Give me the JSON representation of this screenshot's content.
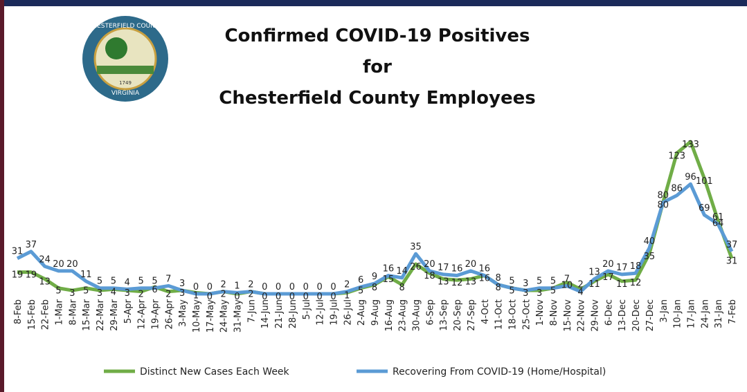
{
  "logo": {
    "top_text": "CHESTERFIELD COUNTY",
    "bottom_text": "VIRGINIA",
    "year": "1749"
  },
  "chart_data": {
    "type": "line",
    "title_lines": [
      "Confirmed COVID-19 Positives",
      "for",
      "Chesterfield County Employees"
    ],
    "categories": [
      "8-Feb",
      "15-Feb",
      "22-Feb",
      "1-Mar",
      "8-Mar",
      "15-Mar",
      "22-Mar",
      "29-Mar",
      "5-Apr",
      "12-Apr",
      "19-Apr",
      "26-Apr",
      "3-May",
      "10-May",
      "17-May",
      "24-May",
      "31-May",
      "7-Jun",
      "14-Jun",
      "21-Jun",
      "28-Jun",
      "5-Jul",
      "12-Jul",
      "19-Jul",
      "26-Jul",
      "2-Aug",
      "9-Aug",
      "16-Aug",
      "23-Aug",
      "30-Aug",
      "6-Sep",
      "13-Sep",
      "20-Sep",
      "27-Sep",
      "4-Oct",
      "11-Oct",
      "18-Oct",
      "25-Oct",
      "1-Nov",
      "8-Nov",
      "15-Nov",
      "22-Nov",
      "29-Nov",
      "6-Dec",
      "13-Dec",
      "20-Dec",
      "27-Dec",
      "3-Jan",
      "10-Jan",
      "17-Jan",
      "24-Jan",
      "31-Jan",
      "7-Feb"
    ],
    "series": [
      {
        "name": "Distinct New Cases Each Week",
        "color": "#70ad47",
        "values": [
          19,
          19,
          13,
          5,
          3,
          5,
          3,
          4,
          3,
          2,
          6,
          2,
          3,
          1,
          0,
          2,
          0,
          2,
          0,
          0,
          0,
          0,
          0,
          0,
          1,
          5,
          8,
          15,
          8,
          26,
          18,
          13,
          12,
          13,
          16,
          8,
          5,
          3,
          3,
          5,
          10,
          4,
          11,
          17,
          11,
          12,
          35,
          80,
          123,
          133,
          101,
          64,
          31
        ]
      },
      {
        "name": "Recovering From COVID-19 (Home/Hospital)",
        "color": "#5b9bd5",
        "values": [
          31,
          37,
          24,
          20,
          20,
          11,
          5,
          5,
          4,
          5,
          5,
          7,
          3,
          0,
          0,
          2,
          1,
          2,
          0,
          0,
          0,
          0,
          0,
          0,
          2,
          6,
          9,
          16,
          14,
          35,
          20,
          17,
          16,
          20,
          16,
          8,
          5,
          3,
          5,
          5,
          7,
          2,
          13,
          20,
          17,
          18,
          40,
          80,
          86,
          96,
          69,
          61,
          37
        ]
      }
    ],
    "legend": "bottom"
  }
}
